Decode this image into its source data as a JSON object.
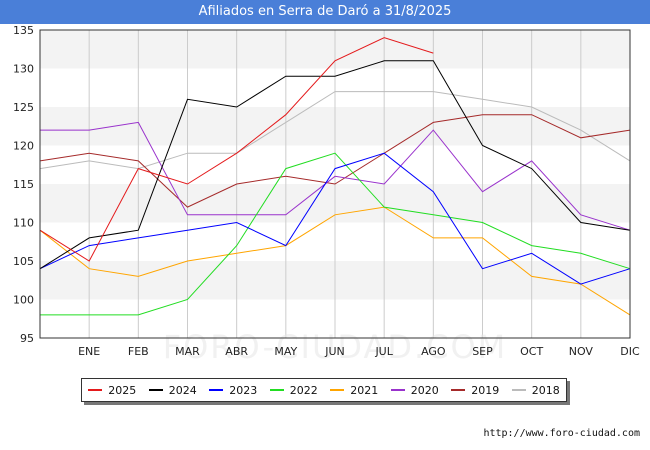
{
  "title": "Afiliados en Serra de Daró a 31/8/2025",
  "source": "http://www.foro-ciudad.com",
  "watermark": "FORO-CIUDAD.COM",
  "chart_data": {
    "type": "line",
    "title": "Afiliados en Serra de Daró a 31/8/2025",
    "x": [
      "",
      "ENE",
      "FEB",
      "MAR",
      "ABR",
      "MAY",
      "JUN",
      "JUL",
      "AGO",
      "SEP",
      "OCT",
      "NOV",
      "DIC"
    ],
    "ylim": [
      95,
      135
    ],
    "yticks": [
      95,
      100,
      105,
      110,
      115,
      120,
      125,
      130,
      135
    ],
    "grid": true,
    "legend_position": "bottom",
    "series": [
      {
        "name": "2025",
        "color": "#e41a1c",
        "values": [
          109,
          105,
          117,
          115,
          119,
          124,
          131,
          134,
          132,
          null,
          null,
          null,
          null
        ]
      },
      {
        "name": "2024",
        "color": "#000000",
        "values": [
          104,
          108,
          109,
          126,
          125,
          129,
          129,
          131,
          131,
          120,
          117,
          110,
          109
        ]
      },
      {
        "name": "2023",
        "color": "#0000ff",
        "values": [
          104,
          107,
          108,
          109,
          110,
          107,
          117,
          119,
          114,
          104,
          106,
          102,
          104
        ]
      },
      {
        "name": "2022",
        "color": "#22dd22",
        "values": [
          98,
          98,
          98,
          100,
          107,
          117,
          119,
          112,
          111,
          110,
          107,
          106,
          104
        ]
      },
      {
        "name": "2021",
        "color": "#ffa500",
        "values": [
          109,
          104,
          103,
          105,
          106,
          107,
          111,
          112,
          108,
          108,
          103,
          102,
          98
        ]
      },
      {
        "name": "2020",
        "color": "#9932cc",
        "values": [
          122,
          122,
          123,
          111,
          111,
          111,
          116,
          115,
          122,
          114,
          118,
          111,
          109
        ]
      },
      {
        "name": "2019",
        "color": "#a52a2a",
        "values": [
          118,
          119,
          118,
          112,
          115,
          116,
          115,
          119,
          123,
          124,
          124,
          121,
          122
        ]
      },
      {
        "name": "2018",
        "color": "#bbbbbb",
        "values": [
          117,
          118,
          117,
          119,
          119,
          123,
          127,
          127,
          127,
          126,
          125,
          122,
          118
        ]
      }
    ]
  }
}
